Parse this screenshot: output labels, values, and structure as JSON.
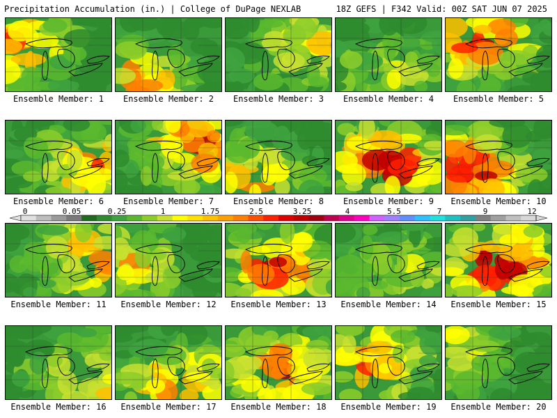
{
  "header": {
    "left": "Precipitation Accumulation (in.) | College of DuPage NEXLAB",
    "right": "18Z GEFS | F342 Valid: 00Z SAT JUN 07 2025"
  },
  "panels": [
    {
      "label": "Ensemble Member: 1",
      "intensity": 0.55,
      "hot": [
        0.1,
        0.35
      ]
    },
    {
      "label": "Ensemble Member: 2",
      "intensity": 0.5,
      "hot": [
        0.2,
        0.85
      ]
    },
    {
      "label": "Ensemble Member: 3",
      "intensity": 0.4,
      "hot": [
        0.85,
        0.4
      ]
    },
    {
      "label": "Ensemble Member: 4",
      "intensity": 0.3,
      "hot": [
        0.6,
        0.8
      ]
    },
    {
      "label": "Ensemble Member: 5",
      "intensity": 0.6,
      "hot": [
        0.3,
        0.3
      ]
    },
    {
      "label": "Ensemble Member: 6",
      "intensity": 0.5,
      "hot": [
        0.85,
        0.6
      ]
    },
    {
      "label": "Ensemble Member: 7",
      "intensity": 0.6,
      "hot": [
        0.75,
        0.35
      ]
    },
    {
      "label": "Ensemble Member: 8",
      "intensity": 0.45,
      "hot": [
        0.2,
        0.8
      ]
    },
    {
      "label": "Ensemble Member: 9",
      "intensity": 0.7,
      "hot": [
        0.5,
        0.6
      ]
    },
    {
      "label": "Ensemble Member: 10",
      "intensity": 0.7,
      "hot": [
        0.2,
        0.7
      ]
    },
    {
      "label": "Ensemble Member: 11",
      "intensity": 0.55,
      "hot": [
        0.85,
        0.5
      ]
    },
    {
      "label": "Ensemble Member: 12",
      "intensity": 0.4,
      "hot": [
        0.15,
        0.6
      ]
    },
    {
      "label": "Ensemble Member: 13",
      "intensity": 0.65,
      "hot": [
        0.5,
        0.6
      ]
    },
    {
      "label": "Ensemble Member: 14",
      "intensity": 0.3,
      "hot": [
        0.7,
        0.7
      ]
    },
    {
      "label": "Ensemble Member: 15",
      "intensity": 0.75,
      "hot": [
        0.5,
        0.55
      ]
    },
    {
      "label": "Ensemble Member: 16",
      "intensity": 0.45,
      "hot": [
        0.85,
        0.7
      ]
    },
    {
      "label": "Ensemble Member: 17",
      "intensity": 0.55,
      "hot": [
        0.6,
        0.8
      ]
    },
    {
      "label": "Ensemble Member: 18",
      "intensity": 0.6,
      "hot": [
        0.55,
        0.6
      ]
    },
    {
      "label": "Ensemble Member: 19",
      "intensity": 0.5,
      "hot": [
        0.3,
        0.5
      ]
    },
    {
      "label": "Ensemble Member: 20",
      "intensity": 0.35,
      "hot": [
        0.1,
        0.3
      ]
    }
  ],
  "colorbar": {
    "labels": [
      "0",
      "0.05",
      "0.25",
      "1",
      "1.75",
      "2.5",
      "3.25",
      "4",
      "5.5",
      "7",
      "9",
      "12"
    ],
    "colors": [
      "#e0e0e0",
      "#bdbdbd",
      "#9a9a9a",
      "#7a7a7a",
      "#1e6b1e",
      "#2e8b2e",
      "#3ea33e",
      "#5ab82e",
      "#8ccd2a",
      "#c8e030",
      "#ffff00",
      "#ffe000",
      "#ffc000",
      "#ffa000",
      "#ff8000",
      "#ff5000",
      "#ff2000",
      "#e00000",
      "#c00000",
      "#a00010",
      "#c00050",
      "#e00090",
      "#ff00c0",
      "#d060ff",
      "#a080ff",
      "#6090ff",
      "#30c0ff",
      "#20e0e0",
      "#20c0c0",
      "#30a0a0",
      "#808080",
      "#a0a0a0",
      "#c0c0c0",
      "#d8d8d8"
    ]
  }
}
